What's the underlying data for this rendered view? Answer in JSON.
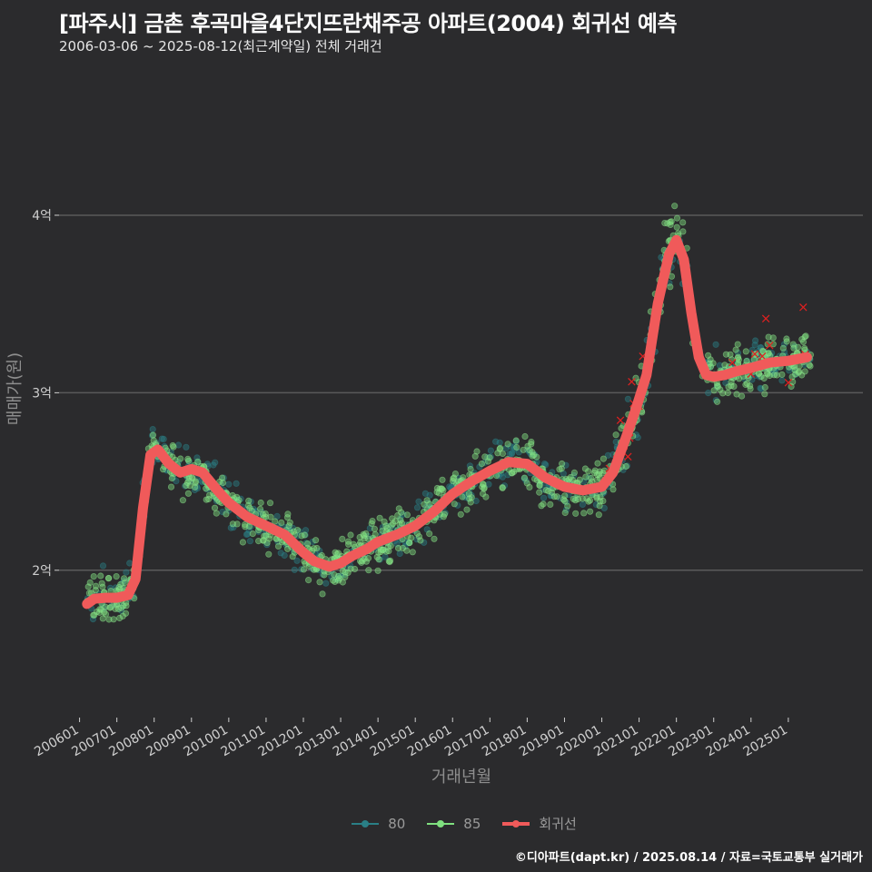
{
  "chart_data": {
    "type": "scatter",
    "title": "[파주시] 금촌 후곡마을4단지뜨란채주공 아파트(2004) 회귀선 예측",
    "subtitle": "2006-03-06 ~ 2025-08-12(최근계약일) 전체 거래건",
    "xlabel": "거래년월",
    "ylabel": "매매가(원)",
    "x_tick_labels": [
      "200601",
      "200701",
      "200801",
      "200901",
      "201001",
      "201101",
      "201201",
      "201301",
      "201401",
      "201501",
      "201601",
      "201701",
      "201801",
      "201901",
      "202001",
      "202101",
      "202201",
      "202301",
      "202401",
      "202501"
    ],
    "y_ticks": [
      2,
      3,
      4
    ],
    "y_tick_labels": [
      "2억",
      "3억",
      "4억"
    ],
    "xlim": [
      2005.45,
      2027.0
    ],
    "ylim": [
      1.17,
      4.88
    ],
    "grid": true,
    "legend_position": "bottom",
    "series": [
      {
        "name": "80",
        "color": "#2a7f86"
      },
      {
        "name": "85",
        "color": "#7fe07f"
      },
      {
        "name": "회귀선",
        "color": "#f05a5a"
      }
    ],
    "regression_line": {
      "x": [
        2006.2,
        2006.4,
        2006.7,
        2007.0,
        2007.3,
        2007.5,
        2007.7,
        2007.9,
        2008.1,
        2008.4,
        2008.7,
        2009.0,
        2009.3,
        2009.7,
        2010.0,
        2010.5,
        2011.0,
        2011.5,
        2012.0,
        2012.3,
        2012.7,
        2013.0,
        2013.3,
        2013.7,
        2014.0,
        2014.5,
        2015.0,
        2015.5,
        2016.0,
        2016.5,
        2017.0,
        2017.5,
        2018.0,
        2018.5,
        2019.0,
        2019.5,
        2020.0,
        2020.3,
        2020.6,
        2020.9,
        2021.2,
        2021.5,
        2021.8,
        2022.0,
        2022.2,
        2022.4,
        2022.6,
        2022.8,
        2023.0,
        2023.3,
        2023.6,
        2024.0,
        2024.5,
        2025.0,
        2025.5
      ],
      "y": [
        1.81,
        1.84,
        1.845,
        1.845,
        1.86,
        1.95,
        2.35,
        2.65,
        2.68,
        2.6,
        2.55,
        2.57,
        2.55,
        2.45,
        2.38,
        2.3,
        2.25,
        2.2,
        2.1,
        2.05,
        2.02,
        2.04,
        2.08,
        2.12,
        2.16,
        2.2,
        2.25,
        2.33,
        2.43,
        2.5,
        2.56,
        2.61,
        2.6,
        2.52,
        2.47,
        2.45,
        2.47,
        2.55,
        2.72,
        2.9,
        3.1,
        3.5,
        3.78,
        3.86,
        3.75,
        3.45,
        3.2,
        3.1,
        3.09,
        3.1,
        3.12,
        3.14,
        3.17,
        3.18,
        3.2
      ]
    },
    "cancelled_deals_marker": "×"
  },
  "footer": {
    "caption": "©디아파트(dapt.kr) / 2025.08.14 / 자료=국토교통부 실거래가"
  },
  "colors": {
    "background": "#2b2b2d",
    "grid": "#5a5a5a",
    "text": "#cfcfcf",
    "axis_title": "#8e8e8e"
  }
}
